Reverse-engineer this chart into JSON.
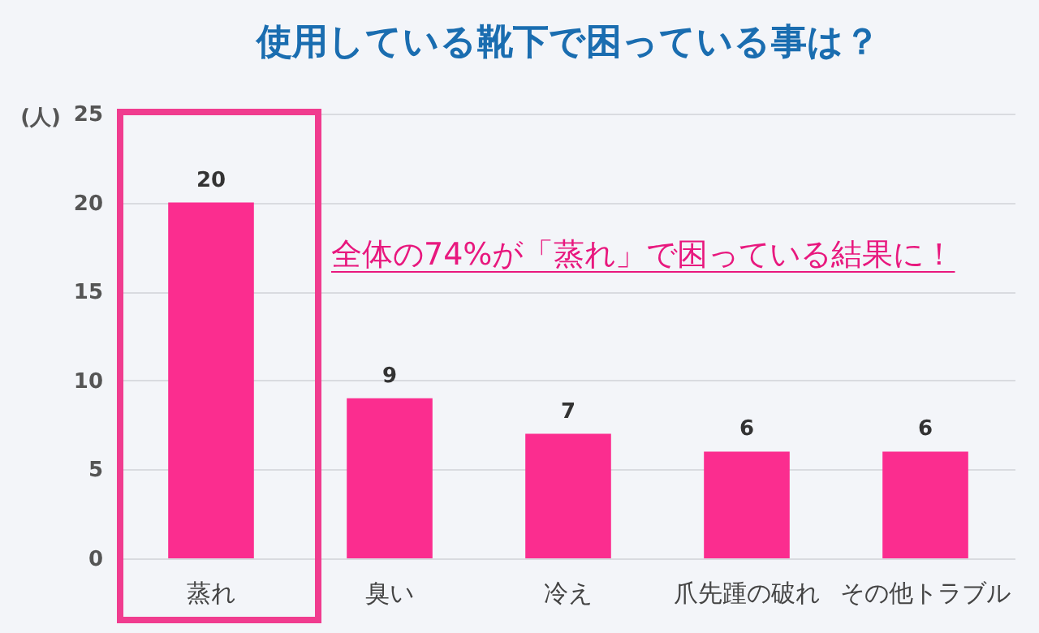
{
  "chart_data": {
    "type": "bar",
    "title": "使用している靴下で困っている事は？",
    "ylabel": "(人)",
    "categories": [
      "蒸れ",
      "臭い",
      "冷え",
      "爪先踵の破れ",
      "その他トラブル"
    ],
    "values": [
      20,
      9,
      7,
      6,
      6
    ],
    "color": "#fb2d8f",
    "ylim": [
      0,
      25
    ],
    "yticks": [
      0,
      5,
      10,
      15,
      20,
      25
    ],
    "grid": "y",
    "data_labels": true,
    "annotations": [
      "全体の74%が「蒸れ」で困っている結果に！"
    ]
  }
}
